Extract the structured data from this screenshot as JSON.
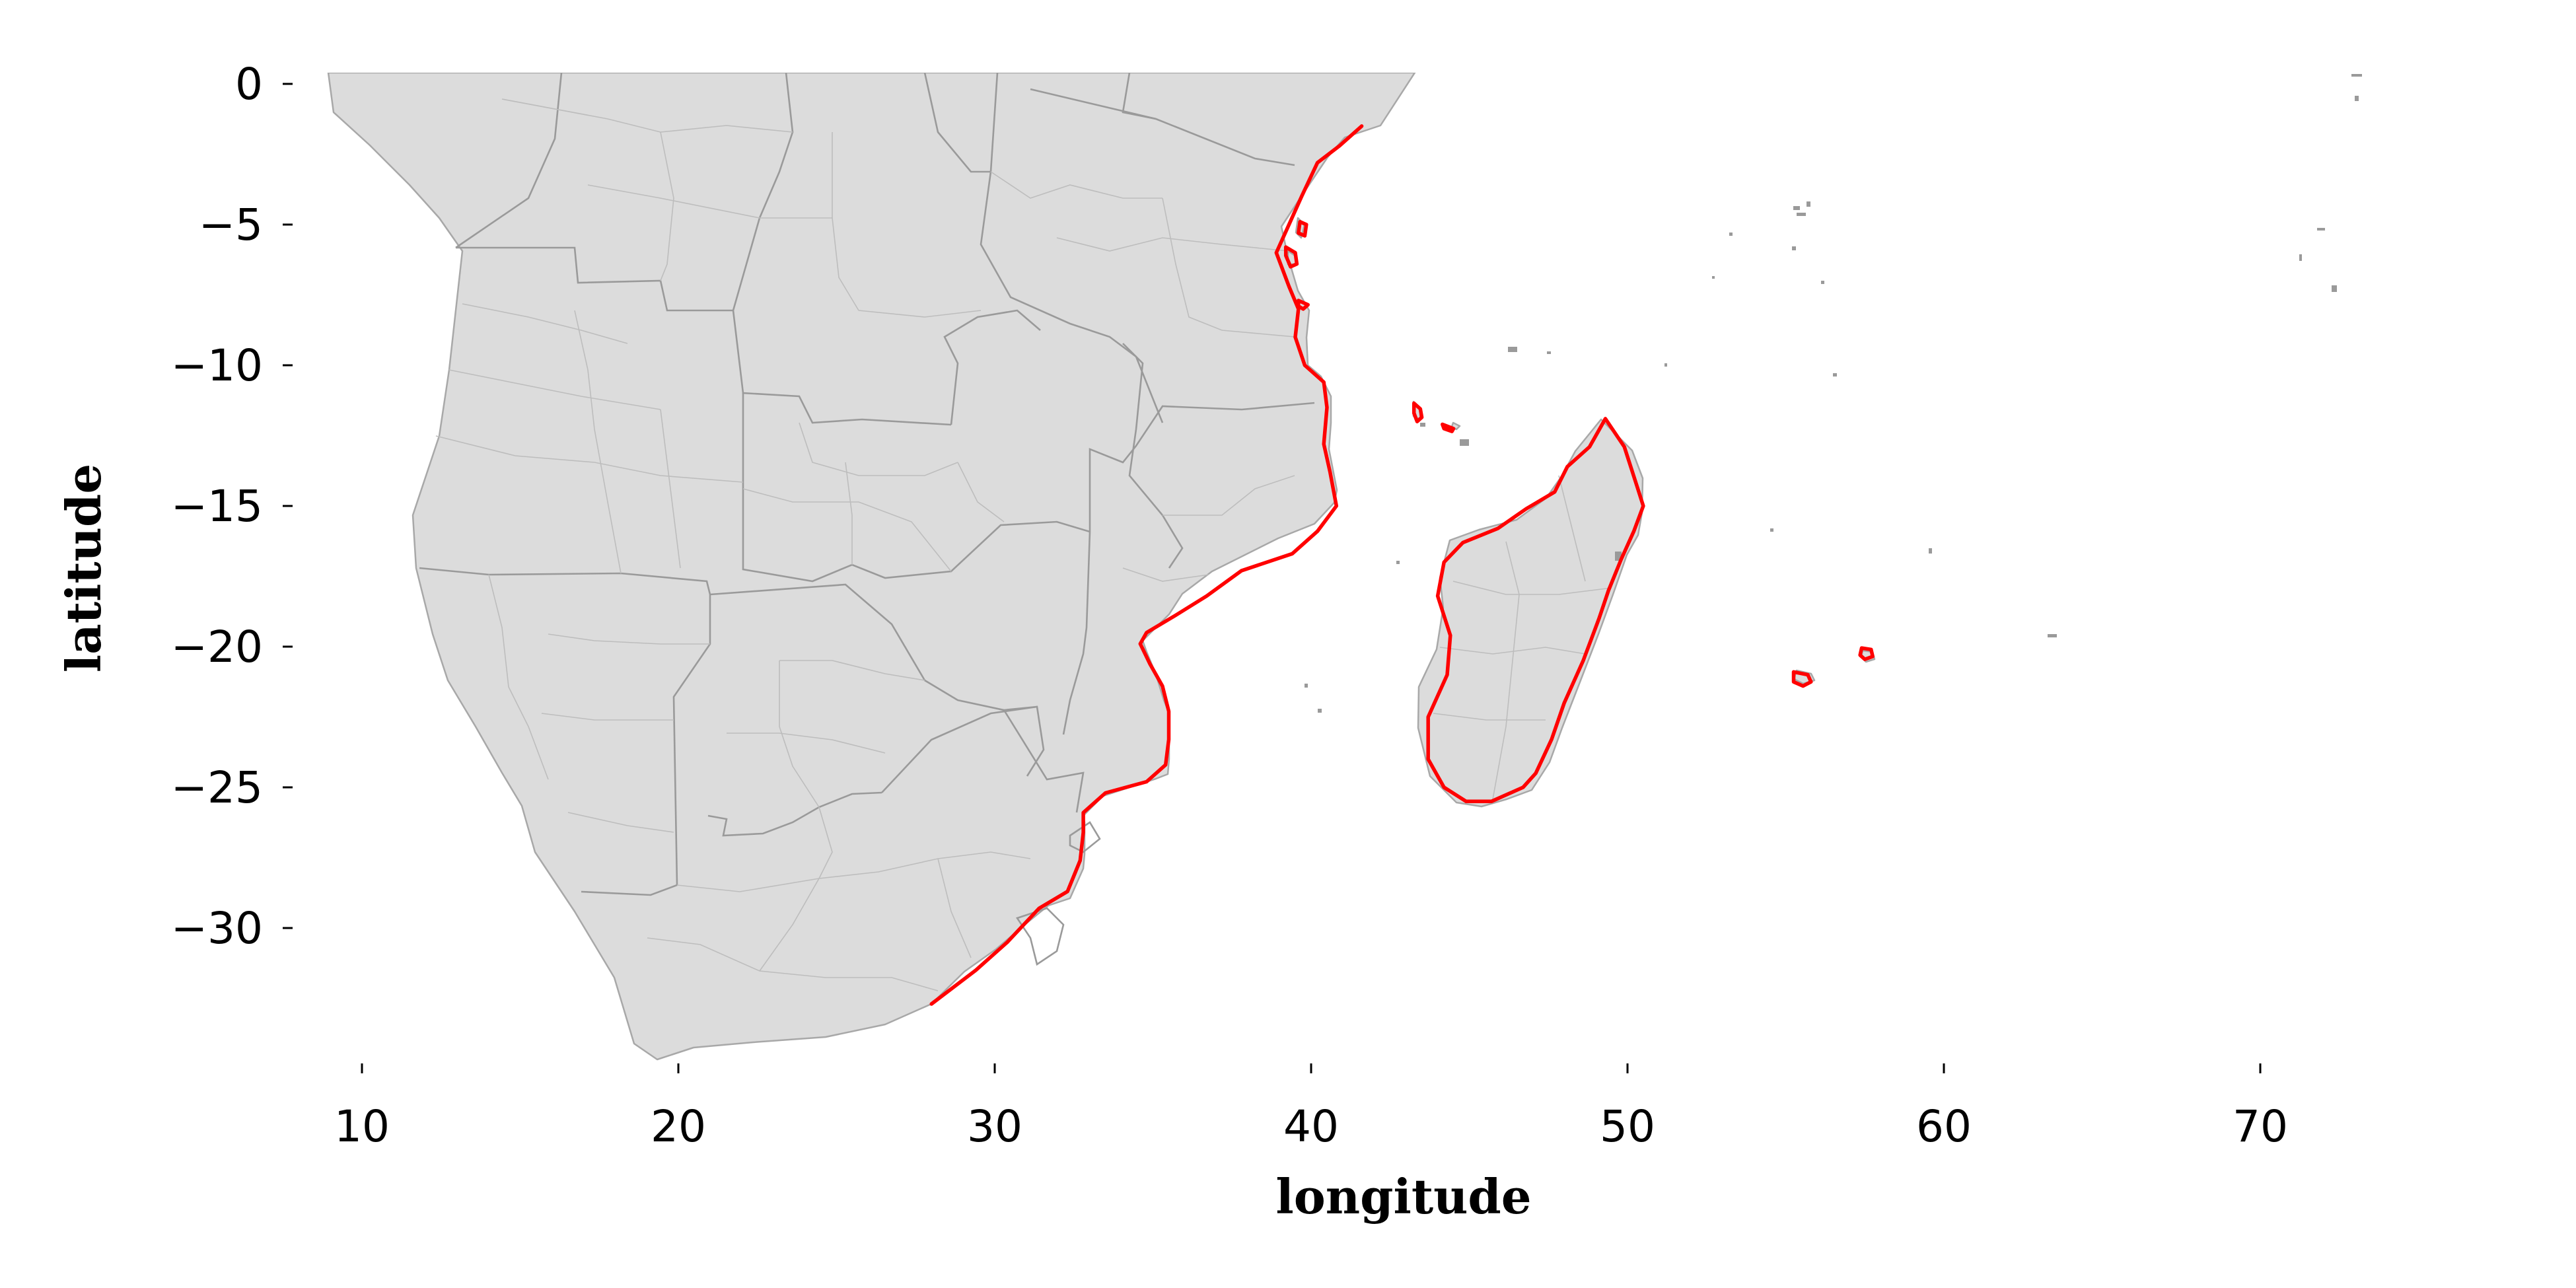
{
  "chart_data": {
    "type": "map",
    "xlabel": "longitude",
    "ylabel": "latitude",
    "xlim": [
      7.5,
      79.5
    ],
    "ylim": [
      -35.2,
      0.4
    ],
    "xticks": [
      10,
      20,
      30,
      40,
      50,
      60,
      70
    ],
    "yticks": [
      0,
      -5,
      -10,
      -15,
      -20,
      -25,
      -30
    ],
    "xtick_labels": [
      "10",
      "20",
      "30",
      "40",
      "50",
      "60",
      "70"
    ],
    "ytick_labels": [
      "0",
      "−5",
      "−10",
      "−15",
      "−20",
      "−25",
      "−30"
    ],
    "grid": false,
    "colors": {
      "land_fill": "#dcdcdc",
      "land_edge": "#a8a8a8",
      "highlight_coastline": "#ff0000"
    },
    "highlighted_coastlines": [
      {
        "region": "east-africa-coast",
        "points": [
          [
            41.6,
            -1.5
          ],
          [
            40.9,
            -2.2
          ],
          [
            40.2,
            -2.8
          ],
          [
            39.7,
            -4.0
          ],
          [
            39.3,
            -5.0
          ],
          [
            38.9,
            -6.0
          ],
          [
            39.3,
            -7.2
          ],
          [
            39.6,
            -8.0
          ],
          [
            39.5,
            -9.0
          ],
          [
            39.8,
            -10.0
          ],
          [
            40.4,
            -10.6
          ],
          [
            40.5,
            -11.5
          ],
          [
            40.4,
            -12.8
          ],
          [
            40.6,
            -13.8
          ],
          [
            40.8,
            -15.0
          ],
          [
            40.2,
            -15.9
          ],
          [
            39.4,
            -16.7
          ],
          [
            37.8,
            -17.3
          ],
          [
            36.7,
            -18.2
          ],
          [
            35.7,
            -18.9
          ],
          [
            34.8,
            -19.5
          ],
          [
            34.6,
            -19.9
          ],
          [
            34.9,
            -20.6
          ],
          [
            35.3,
            -21.4
          ],
          [
            35.5,
            -22.3
          ],
          [
            35.5,
            -23.3
          ],
          [
            35.4,
            -24.2
          ],
          [
            34.8,
            -24.8
          ],
          [
            33.5,
            -25.2
          ],
          [
            32.8,
            -25.9
          ],
          [
            32.8,
            -26.6
          ],
          [
            32.7,
            -27.6
          ],
          [
            32.3,
            -28.7
          ],
          [
            31.4,
            -29.3
          ],
          [
            30.4,
            -30.5
          ],
          [
            29.4,
            -31.5
          ],
          [
            28.0,
            -32.7
          ]
        ]
      },
      {
        "region": "madagascar",
        "points": [
          [
            49.3,
            -11.9
          ],
          [
            49.9,
            -12.9
          ],
          [
            50.3,
            -14.3
          ],
          [
            50.5,
            -15.0
          ],
          [
            50.2,
            -15.9
          ],
          [
            49.8,
            -16.9
          ],
          [
            49.4,
            -18.0
          ],
          [
            49.1,
            -19.0
          ],
          [
            48.6,
            -20.5
          ],
          [
            48.0,
            -22.0
          ],
          [
            47.6,
            -23.3
          ],
          [
            47.1,
            -24.5
          ],
          [
            46.7,
            -25.0
          ],
          [
            45.7,
            -25.5
          ],
          [
            44.9,
            -25.5
          ],
          [
            44.2,
            -25.0
          ],
          [
            43.7,
            -24.0
          ],
          [
            43.7,
            -22.5
          ],
          [
            44.3,
            -21.0
          ],
          [
            44.4,
            -19.6
          ],
          [
            44.0,
            -18.2
          ],
          [
            44.2,
            -17.0
          ],
          [
            44.8,
            -16.3
          ],
          [
            45.9,
            -15.8
          ],
          [
            46.8,
            -15.1
          ],
          [
            47.7,
            -14.5
          ],
          [
            48.1,
            -13.6
          ],
          [
            48.8,
            -12.9
          ],
          [
            49.3,
            -11.9
          ]
        ]
      },
      {
        "region": "comoros-grande-comore",
        "points": [
          [
            43.25,
            -11.35
          ],
          [
            43.45,
            -11.55
          ],
          [
            43.5,
            -11.85
          ],
          [
            43.35,
            -12.0
          ],
          [
            43.25,
            -11.7
          ],
          [
            43.25,
            -11.35
          ]
        ]
      },
      {
        "region": "comoros-anjouan",
        "points": [
          [
            44.15,
            -12.1
          ],
          [
            44.5,
            -12.25
          ],
          [
            44.45,
            -12.35
          ],
          [
            44.2,
            -12.25
          ],
          [
            44.15,
            -12.1
          ]
        ]
      },
      {
        "region": "reunion",
        "points": [
          [
            55.25,
            -20.9
          ],
          [
            55.7,
            -21.0
          ],
          [
            55.8,
            -21.25
          ],
          [
            55.55,
            -21.4
          ],
          [
            55.25,
            -21.25
          ],
          [
            55.25,
            -20.9
          ]
        ]
      },
      {
        "region": "mauritius",
        "points": [
          [
            57.4,
            -20.05
          ],
          [
            57.7,
            -20.1
          ],
          [
            57.75,
            -20.35
          ],
          [
            57.5,
            -20.45
          ],
          [
            57.35,
            -20.3
          ],
          [
            57.4,
            -20.05
          ]
        ]
      },
      {
        "region": "pemba-island",
        "points": [
          [
            39.65,
            -4.9
          ],
          [
            39.85,
            -5.0
          ],
          [
            39.8,
            -5.4
          ],
          [
            39.6,
            -5.3
          ],
          [
            39.65,
            -4.9
          ]
        ]
      },
      {
        "region": "zanzibar-island",
        "points": [
          [
            39.2,
            -5.8
          ],
          [
            39.5,
            -6.0
          ],
          [
            39.55,
            -6.4
          ],
          [
            39.35,
            -6.5
          ],
          [
            39.2,
            -6.1
          ],
          [
            39.2,
            -5.8
          ]
        ]
      },
      {
        "region": "mafia-island",
        "points": [
          [
            39.6,
            -7.7
          ],
          [
            39.9,
            -7.85
          ],
          [
            39.75,
            -8.0
          ],
          [
            39.6,
            -7.9
          ],
          [
            39.6,
            -7.7
          ]
        ]
      }
    ]
  }
}
